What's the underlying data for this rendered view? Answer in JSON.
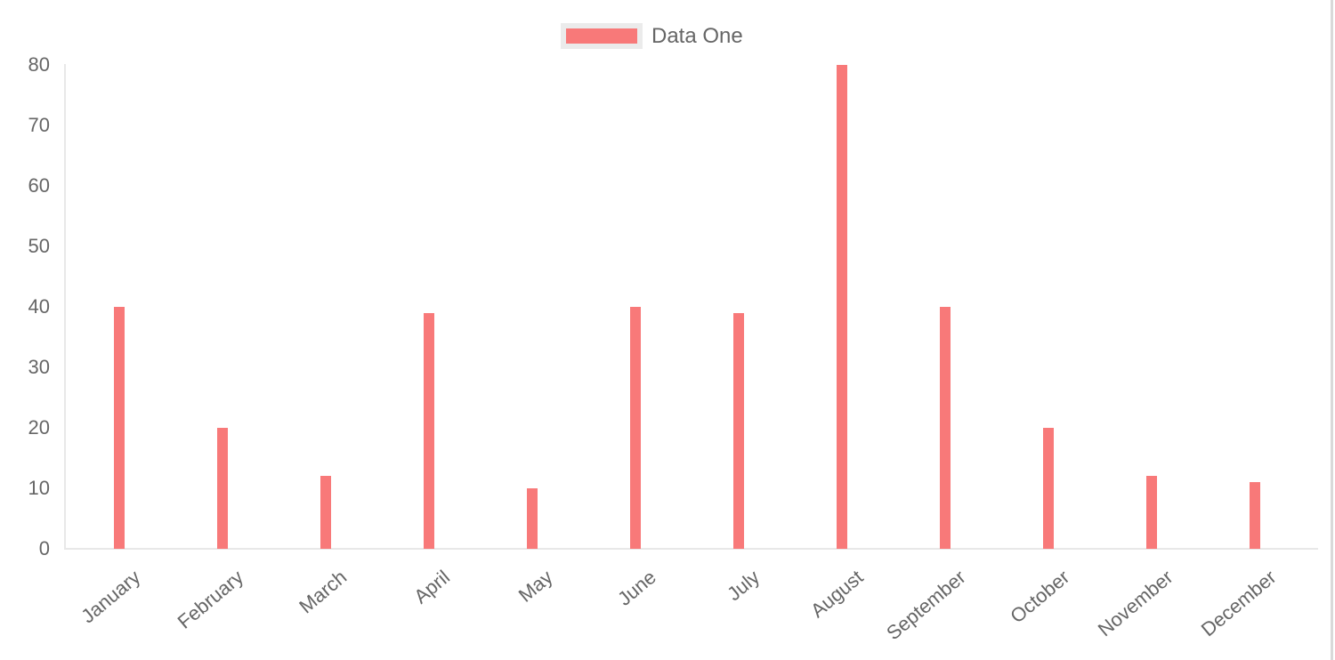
{
  "page": {
    "background": "#ffffff"
  },
  "legend": {
    "label": "Data One",
    "swatch_color": "#f87979",
    "swatch_border_color": "#ebebeb",
    "text_color": "#666666"
  },
  "chart_data": {
    "type": "bar",
    "title": "",
    "xlabel": "",
    "ylabel": "",
    "categories": [
      "January",
      "February",
      "March",
      "April",
      "May",
      "June",
      "July",
      "August",
      "September",
      "October",
      "November",
      "December"
    ],
    "series": [
      {
        "name": "Data One",
        "color": "#f87979",
        "values": [
          40,
          20,
          12,
          39,
          10,
          40,
          39,
          80,
          40,
          20,
          12,
          11
        ]
      }
    ],
    "ylim": [
      0,
      80
    ],
    "yticks": [
      0,
      10,
      20,
      30,
      40,
      50,
      60,
      70,
      80
    ],
    "grid": false,
    "legend_position": "top",
    "axis_color": "#e8e8e8",
    "tick_label_color": "#666666",
    "x_label_rotation_deg": -40
  }
}
